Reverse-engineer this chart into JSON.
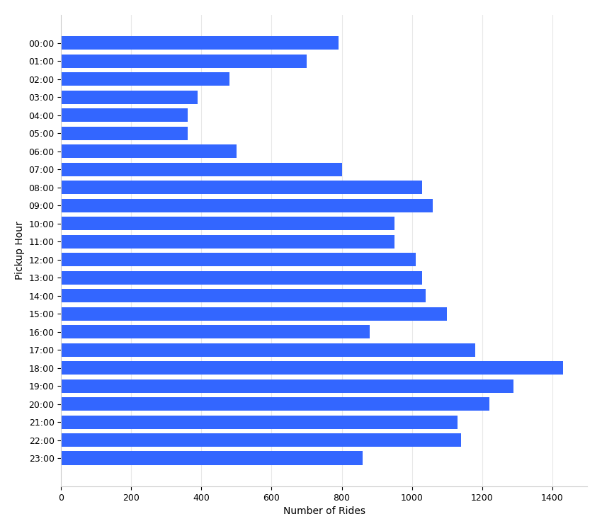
{
  "hours": [
    "00:00",
    "01:00",
    "02:00",
    "03:00",
    "04:00",
    "05:00",
    "06:00",
    "07:00",
    "08:00",
    "09:00",
    "10:00",
    "11:00",
    "12:00",
    "13:00",
    "14:00",
    "15:00",
    "16:00",
    "17:00",
    "18:00",
    "19:00",
    "20:00",
    "21:00",
    "22:00",
    "23:00"
  ],
  "values": [
    790,
    700,
    480,
    390,
    360,
    360,
    500,
    800,
    1030,
    1060,
    950,
    950,
    1010,
    1030,
    1040,
    1100,
    880,
    1180,
    1430,
    1290,
    1220,
    1130,
    1140,
    860
  ],
  "bar_color": "#3366ff",
  "xlabel": "Number of Rides",
  "ylabel": "Pickup Hour",
  "xlim": [
    0,
    1500
  ],
  "xticks": [
    0,
    200,
    400,
    600,
    800,
    1000,
    1200,
    1400
  ],
  "background_color": "#ffffff",
  "chart_bg": "#ffffff",
  "grid_color": "#e8e8e8",
  "bar_height": 0.75,
  "figsize": [
    8.5,
    7.5
  ]
}
